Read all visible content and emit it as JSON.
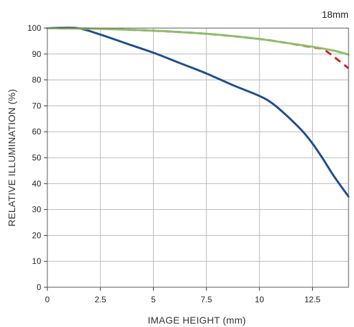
{
  "chart_data": {
    "type": "line",
    "title": "18mm",
    "xlabel": "IMAGE HEIGHT (mm)",
    "ylabel": "RELATIVE ILLUMINATION (%)",
    "xlim": [
      0,
      14.2
    ],
    "ylim": [
      0,
      100
    ],
    "x_ticks": [
      "0",
      "2.5",
      "5",
      "7.5",
      "10",
      "12.5"
    ],
    "x_tick_values": [
      0,
      2.5,
      5,
      7.5,
      10,
      12.5
    ],
    "y_ticks": [
      "0",
      "10",
      "20",
      "30",
      "40",
      "50",
      "60",
      "70",
      "80",
      "90",
      "100"
    ],
    "y_tick_values": [
      0,
      10,
      20,
      30,
      40,
      50,
      60,
      70,
      80,
      90,
      100
    ],
    "grid": true,
    "series": [
      {
        "color": "#1f4e8c",
        "style": "solid",
        "points": [
          [
            0,
            100
          ],
          [
            1.4,
            100
          ],
          [
            2.5,
            97.5
          ],
          [
            3.75,
            94
          ],
          [
            5,
            90.5
          ],
          [
            6.25,
            86.5
          ],
          [
            7.5,
            82.5
          ],
          [
            8.75,
            78
          ],
          [
            10,
            73.8
          ],
          [
            10.6,
            71
          ],
          [
            11.25,
            66.5
          ],
          [
            12,
            60.5
          ],
          [
            12.5,
            55.5
          ],
          [
            13,
            49.5
          ],
          [
            13.5,
            43
          ],
          [
            14.2,
            35
          ]
        ]
      },
      {
        "color": "#cc2222",
        "style": "dashed",
        "points": [
          [
            0,
            100
          ],
          [
            2.5,
            99.7
          ],
          [
            5,
            99
          ],
          [
            7.5,
            97.8
          ],
          [
            10,
            95.8
          ],
          [
            11.25,
            94.3
          ],
          [
            12.5,
            92.6
          ],
          [
            13,
            91.8
          ],
          [
            13.5,
            89
          ],
          [
            14.2,
            84.5
          ]
        ]
      },
      {
        "color": "#8ac06a",
        "style": "solid",
        "points": [
          [
            0,
            100
          ],
          [
            2.5,
            99.7
          ],
          [
            5,
            99
          ],
          [
            7.5,
            97.8
          ],
          [
            10,
            95.8
          ],
          [
            11.25,
            94.3
          ],
          [
            12.5,
            92.8
          ],
          [
            13.5,
            91.3
          ],
          [
            14.2,
            89.8
          ]
        ]
      }
    ]
  }
}
